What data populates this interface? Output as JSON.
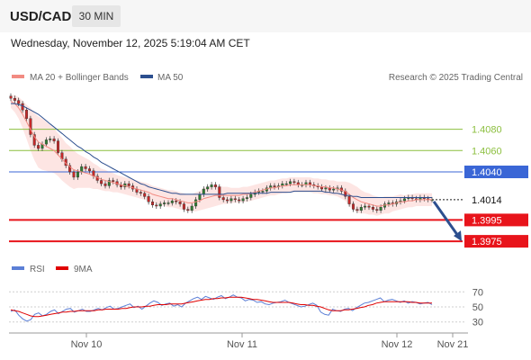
{
  "header": {
    "symbol": "USD/CAD",
    "interval": "30 MIN"
  },
  "datetime": "Wednesday, November 12, 2025 5:19:04 AM CET",
  "legend": {
    "ma20": {
      "label": "MA 20 + Bollinger Bands",
      "color": "#f28b82"
    },
    "ma50": {
      "label": "MA 50",
      "color": "#2c4f8f"
    },
    "credit": "Research © 2025 Trading Central"
  },
  "rsi_legend": {
    "rsi": {
      "label": "RSI",
      "color": "#5b7fd6"
    },
    "ma9": {
      "label": "9MA",
      "color": "#e00000"
    }
  },
  "colors": {
    "green_level": "#8cbf3f",
    "blue_level": "#3a66d6",
    "red_level": "#e8141b",
    "last_price": "#1a1a1a",
    "bull": "#2e7d32",
    "bear": "#c62828"
  },
  "chart_data": [
    {
      "type": "candlestick",
      "title": "USD/CAD",
      "x_ticks": [
        "Nov 10",
        "Nov 11",
        "Nov 12",
        "Nov 21"
      ],
      "ylim": [
        1.3965,
        1.411
      ],
      "levels": [
        {
          "label": "1.4080",
          "value": 1.408,
          "kind": "resistance"
        },
        {
          "label": "1.4060",
          "value": 1.406,
          "kind": "resistance"
        },
        {
          "label": "1.4040",
          "value": 1.404,
          "kind": "pivot"
        },
        {
          "label": "1.4014",
          "value": 1.4014,
          "kind": "last"
        },
        {
          "label": "1.3995",
          "value": 1.3995,
          "kind": "support"
        },
        {
          "label": "1.3975",
          "value": 1.3975,
          "kind": "support"
        }
      ],
      "close": [
        1.4109,
        1.4107,
        1.4104,
        1.4098,
        1.409,
        1.4075,
        1.4065,
        1.4062,
        1.4066,
        1.407,
        1.4071,
        1.4069,
        1.4058,
        1.4052,
        1.4046,
        1.404,
        1.4035,
        1.404,
        1.4045,
        1.4043,
        1.4041,
        1.4036,
        1.4032,
        1.4029,
        1.4027,
        1.4032,
        1.4031,
        1.4028,
        1.4026,
        1.4029,
        1.4027,
        1.4024,
        1.4021,
        1.402,
        1.4017,
        1.4012,
        1.4009,
        1.4008,
        1.401,
        1.4011,
        1.4011,
        1.4013,
        1.4012,
        1.401,
        1.4005,
        1.4004,
        1.4008,
        1.4014,
        1.4019,
        1.4024,
        1.4026,
        1.4028,
        1.4026,
        1.4016,
        1.4014,
        1.4013,
        1.4015,
        1.4014,
        1.4013,
        1.4015,
        1.4016,
        1.4019,
        1.4021,
        1.4022,
        1.4022,
        1.4025,
        1.4027,
        1.4026,
        1.4027,
        1.4029,
        1.4029,
        1.4031,
        1.403,
        1.4028,
        1.4028,
        1.403,
        1.4028,
        1.4027,
        1.4026,
        1.4024,
        1.4025,
        1.4023,
        1.4024,
        1.4025,
        1.4022,
        1.4017,
        1.401,
        1.4005,
        1.4004,
        1.4007,
        1.4008,
        1.4007,
        1.4005,
        1.4004,
        1.4007,
        1.401,
        1.4011,
        1.401,
        1.4012,
        1.4013,
        1.4015,
        1.4016,
        1.4015,
        1.4014,
        1.4016,
        1.4015,
        1.4014,
        1.4014
      ],
      "ma20": [
        1.4106,
        1.4104,
        1.41,
        1.4094,
        1.4087,
        1.408,
        1.4073,
        1.4068,
        1.4066,
        1.4064,
        1.4062,
        1.406,
        1.4056,
        1.4052,
        1.4048,
        1.4045,
        1.4042,
        1.4041,
        1.404,
        1.4039,
        1.4038,
        1.4036,
        1.4035,
        1.4033,
        1.4032,
        1.4031,
        1.403,
        1.4029,
        1.4028,
        1.4027,
        1.4026,
        1.4025,
        1.4024,
        1.4023,
        1.4022,
        1.4021,
        1.4019,
        1.4018,
        1.4017,
        1.4016,
        1.4015,
        1.4015,
        1.4014,
        1.4013,
        1.4012,
        1.4011,
        1.4011,
        1.4012,
        1.4013,
        1.4015,
        1.4016,
        1.4017,
        1.4018,
        1.4018,
        1.4018,
        1.4018,
        1.4018,
        1.4018,
        1.4018,
        1.4019,
        1.4019,
        1.402,
        1.4021,
        1.4022,
        1.4023,
        1.4024,
        1.4025,
        1.4025,
        1.4026,
        1.4027,
        1.4027,
        1.4028,
        1.4028,
        1.4028,
        1.4028,
        1.4028,
        1.4028,
        1.4027,
        1.4027,
        1.4026,
        1.4026,
        1.4025,
        1.4025,
        1.4024,
        1.4023,
        1.4022,
        1.4019,
        1.4016,
        1.4014,
        1.4012,
        1.4011,
        1.401,
        1.4009,
        1.4008,
        1.4008,
        1.4009,
        1.4009,
        1.401,
        1.4011,
        1.4012,
        1.4012,
        1.4013,
        1.4013,
        1.4014,
        1.4014,
        1.4014,
        1.4014,
        1.4014
      ],
      "bb_width": [
        0.0006,
        0.0008,
        0.001,
        0.0013,
        0.0016,
        0.002,
        0.0022,
        0.0024,
        0.0024,
        0.0023,
        0.0022,
        0.0021,
        0.002,
        0.002,
        0.0019,
        0.0019,
        0.0018,
        0.0016,
        0.0015,
        0.0014,
        0.0013,
        0.0012,
        0.0011,
        0.001,
        0.001,
        0.0009,
        0.0009,
        0.0008,
        0.0008,
        0.0008,
        0.0008,
        0.0008,
        0.0008,
        0.0008,
        0.0008,
        0.0008,
        0.0008,
        0.0008,
        0.0008,
        0.0008,
        0.0008,
        0.0008,
        0.0008,
        0.0008,
        0.0008,
        0.0008,
        0.0008,
        0.0009,
        0.0009,
        0.001,
        0.001,
        0.001,
        0.001,
        0.0009,
        0.0008,
        0.0008,
        0.0007,
        0.0007,
        0.0007,
        0.0007,
        0.0007,
        0.0007,
        0.0007,
        0.0007,
        0.0007,
        0.0007,
        0.0007,
        0.0007,
        0.0007,
        0.0007,
        0.0007,
        0.0007,
        0.0007,
        0.0007,
        0.0007,
        0.0007,
        0.0007,
        0.0007,
        0.0007,
        0.0007,
        0.0007,
        0.0007,
        0.0007,
        0.0007,
        0.0008,
        0.0009,
        0.0011,
        0.0012,
        0.0012,
        0.0011,
        0.001,
        0.001,
        0.0009,
        0.0009,
        0.0008,
        0.0008,
        0.0008,
        0.0007,
        0.0007,
        0.0007,
        0.0006,
        0.0006,
        0.0006,
        0.0006,
        0.0006,
        0.0006,
        0.0006,
        0.0006
      ],
      "ma50": [
        1.4104,
        1.4104,
        1.4103,
        1.4102,
        1.41,
        1.4098,
        1.4096,
        1.4094,
        1.4091,
        1.4088,
        1.4085,
        1.4082,
        1.4079,
        1.4076,
        1.4073,
        1.407,
        1.4067,
        1.4064,
        1.4062,
        1.4059,
        1.4057,
        1.4054,
        1.4052,
        1.4049,
        1.4047,
        1.4045,
        1.4043,
        1.4041,
        1.4039,
        1.4037,
        1.4035,
        1.4033,
        1.4031,
        1.4029,
        1.4028,
        1.4026,
        1.4025,
        1.4024,
        1.4023,
        1.4022,
        1.4021,
        1.402,
        1.402,
        1.4019,
        1.4019,
        1.4019,
        1.4019,
        1.4019,
        1.4019,
        1.4019,
        1.4019,
        1.4019,
        1.4019,
        1.4019,
        1.4019,
        1.402,
        1.402,
        1.402,
        1.402,
        1.402,
        1.402,
        1.402,
        1.402,
        1.402,
        1.402,
        1.402,
        1.4021,
        1.4021,
        1.4021,
        1.4021,
        1.4021,
        1.4021,
        1.4022,
        1.4022,
        1.4022,
        1.4022,
        1.4022,
        1.4022,
        1.4022,
        1.4022,
        1.4021,
        1.4021,
        1.402,
        1.402,
        1.4019,
        1.4018,
        1.4018,
        1.4017,
        1.4017,
        1.4016,
        1.4016,
        1.4016,
        1.4016,
        1.4016,
        1.4016,
        1.4016,
        1.4016,
        1.4016,
        1.4016,
        1.4016,
        1.4016,
        1.4016,
        1.4016,
        1.4016,
        1.4016,
        1.4016,
        1.4016,
        1.4016
      ],
      "forecast_arrow": {
        "from": 1.4014,
        "to": 1.3975
      }
    },
    {
      "type": "line",
      "title": "RSI",
      "y_ticks": [
        70,
        50,
        30
      ],
      "ylim": [
        20,
        80
      ],
      "series": [
        {
          "name": "RSI",
          "values": [
            44,
            46,
            39,
            34,
            31,
            33,
            40,
            42,
            38,
            40,
            44,
            46,
            41,
            44,
            47,
            48,
            43,
            45,
            47,
            44,
            44,
            46,
            48,
            46,
            49,
            51,
            47,
            48,
            50,
            52,
            54,
            49,
            51,
            47,
            51,
            55,
            58,
            56,
            52,
            54,
            55,
            51,
            53,
            50,
            55,
            58,
            61,
            63,
            60,
            64,
            62,
            60,
            63,
            65,
            61,
            63,
            66,
            63,
            62,
            58,
            60,
            59,
            56,
            57,
            54,
            53,
            55,
            56,
            57,
            59,
            56,
            54,
            52,
            50,
            51,
            53,
            55,
            52,
            43,
            40,
            39,
            47,
            45,
            44,
            47,
            48,
            45,
            49,
            52,
            55,
            56,
            58,
            60,
            62,
            57,
            59,
            60,
            58,
            56,
            58,
            55,
            57,
            56,
            54,
            55,
            56,
            53
          ]
        },
        {
          "name": "9MA",
          "values": [
            46,
            45,
            44,
            42,
            40,
            38,
            37,
            37,
            38,
            39,
            40,
            41,
            42,
            43,
            43,
            44,
            44,
            45,
            45,
            45,
            45,
            45,
            46,
            46,
            47,
            47,
            47,
            47,
            48,
            48,
            49,
            50,
            50,
            50,
            51,
            51,
            52,
            53,
            53,
            53,
            54,
            54,
            54,
            54,
            55,
            56,
            57,
            58,
            59,
            60,
            60,
            61,
            61,
            62,
            62,
            63,
            63,
            63,
            63,
            62,
            61,
            60,
            60,
            59,
            58,
            57,
            56,
            56,
            56,
            56,
            56,
            55,
            54,
            53,
            53,
            52,
            52,
            51,
            50,
            48,
            46,
            45,
            45,
            45,
            46,
            46,
            47,
            48,
            49,
            50,
            52,
            53,
            55,
            56,
            57,
            57,
            57,
            57,
            57,
            57,
            57,
            56,
            56,
            55,
            55,
            55,
            55
          ]
        }
      ]
    }
  ]
}
